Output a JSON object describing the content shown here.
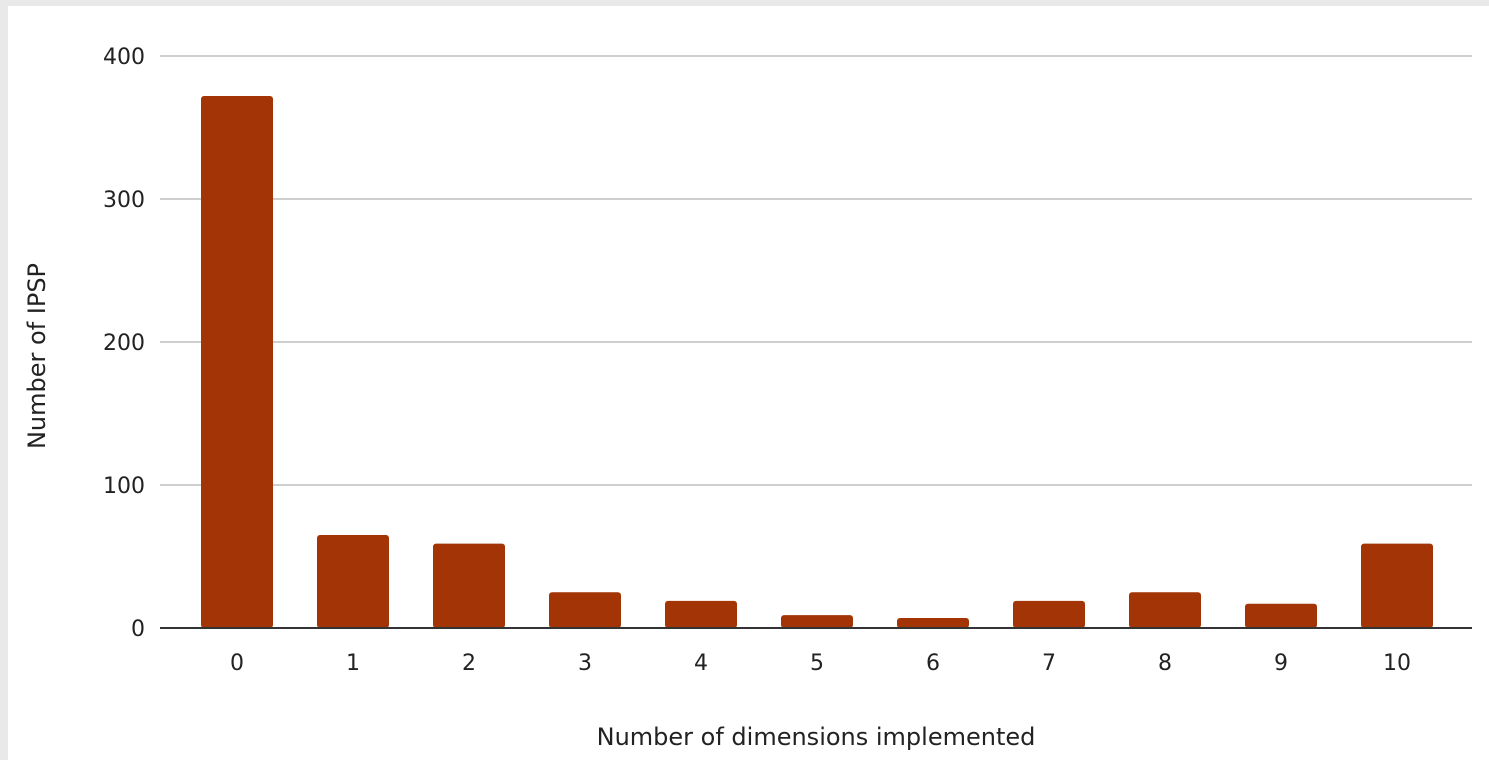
{
  "chart_data": {
    "type": "bar",
    "xlabel": "Number of dimensions implemented",
    "ylabel": "Number of IPSP",
    "categories": [
      "0",
      "1",
      "2",
      "3",
      "4",
      "5",
      "6",
      "7",
      "8",
      "9",
      "10"
    ],
    "values": [
      372,
      65,
      59,
      25,
      19,
      9,
      7,
      19,
      25,
      17,
      59
    ],
    "ylim": [
      0,
      400
    ],
    "yticks": [
      0,
      100,
      200,
      300,
      400
    ],
    "grid": true,
    "legend": "none",
    "colors": {
      "bar": "#a33405",
      "grid": "#cfcfcf",
      "axis": "#333333",
      "background": "#ffffff",
      "page": "#e9e9e9"
    }
  }
}
